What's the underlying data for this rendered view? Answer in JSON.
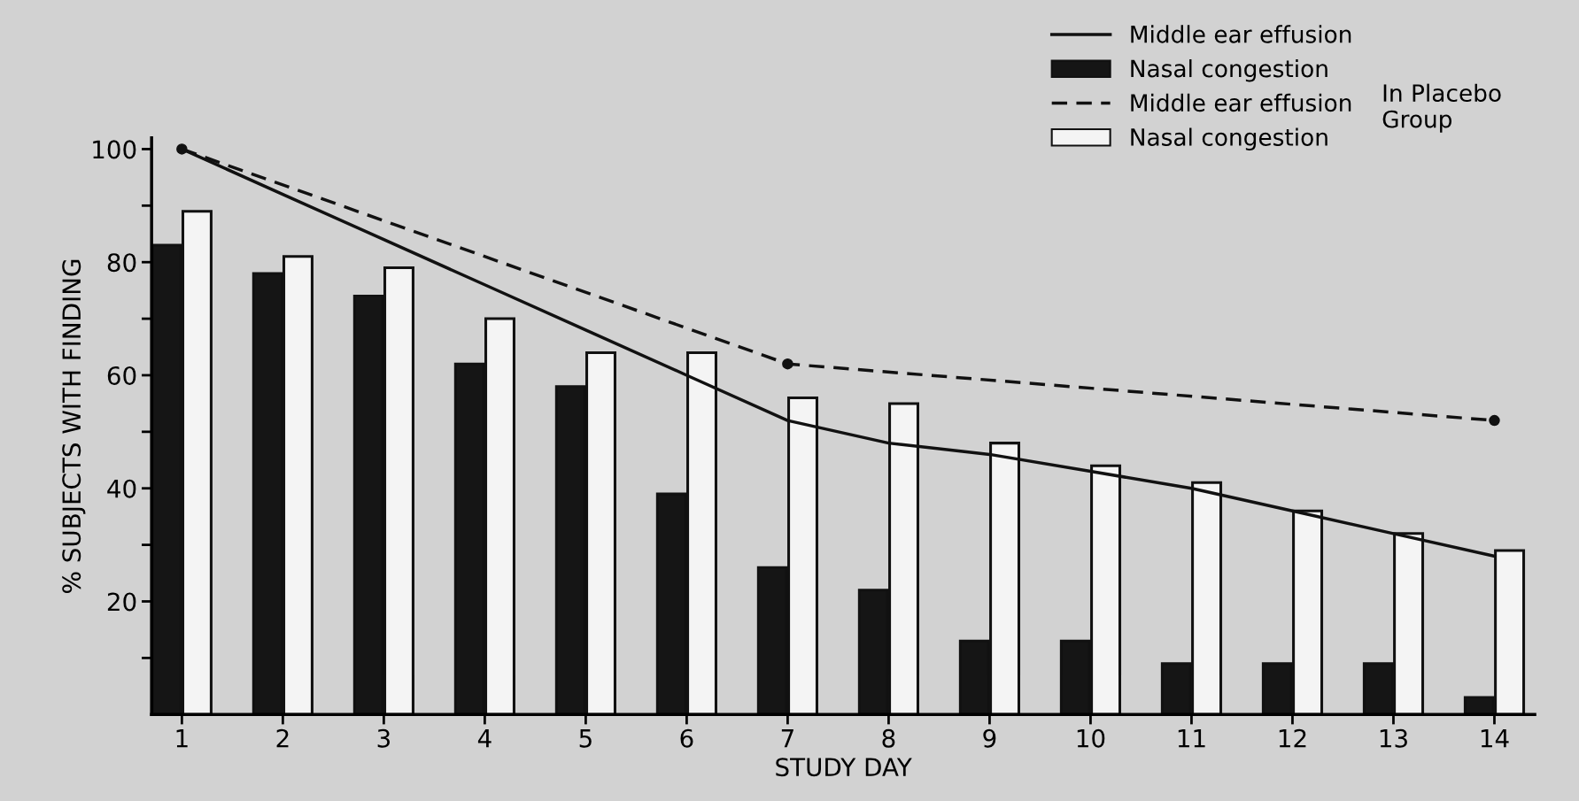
{
  "chart_data": {
    "type": "bar",
    "xlabel": "STUDY DAY",
    "ylabel": "% SUBJECTS WITH FINDING",
    "x": [
      1,
      2,
      3,
      4,
      5,
      6,
      7,
      8,
      9,
      10,
      11,
      12,
      13,
      14
    ],
    "xlim": [
      0.7,
      14.4
    ],
    "xticks": [
      1,
      2,
      3,
      4,
      5,
      6,
      7,
      8,
      9,
      10,
      11,
      12,
      13,
      14
    ],
    "ylim": [
      0,
      102
    ],
    "yticks": [
      {
        "value": 10,
        "label": null
      },
      20,
      {
        "value": 30,
        "label": null
      },
      40,
      {
        "value": 50,
        "label": null
      },
      60,
      {
        "value": 70,
        "label": null
      },
      80,
      {
        "value": 90,
        "label": null
      },
      100
    ],
    "series": [
      {
        "name": "Middle ear effusion",
        "type": "line",
        "line_style": "solid",
        "color": "#111111",
        "values": [
          100,
          92,
          84,
          76,
          68,
          60,
          52,
          48,
          46,
          43,
          40,
          36,
          32,
          28
        ]
      },
      {
        "name": "Nasal congestion",
        "color": "#151515",
        "values": [
          83,
          78,
          74,
          62,
          58,
          39,
          26,
          22,
          13,
          13,
          9,
          9,
          9,
          3
        ]
      },
      {
        "name": "Middle ear effusion",
        "type": "line",
        "line_style": "dashed",
        "marker": "circle",
        "color": "#111111",
        "x": [
          1,
          7,
          14
        ],
        "values": [
          100,
          62,
          52
        ]
      },
      {
        "name": "Nasal congestion",
        "color": "#f4f4f4",
        "values": [
          89,
          81,
          79,
          70,
          64,
          64,
          56,
          55,
          48,
          44,
          41,
          36,
          32,
          29
        ]
      }
    ],
    "annotations": [
      "In Placebo Group"
    ],
    "legend": "top right",
    "grid": false
  }
}
